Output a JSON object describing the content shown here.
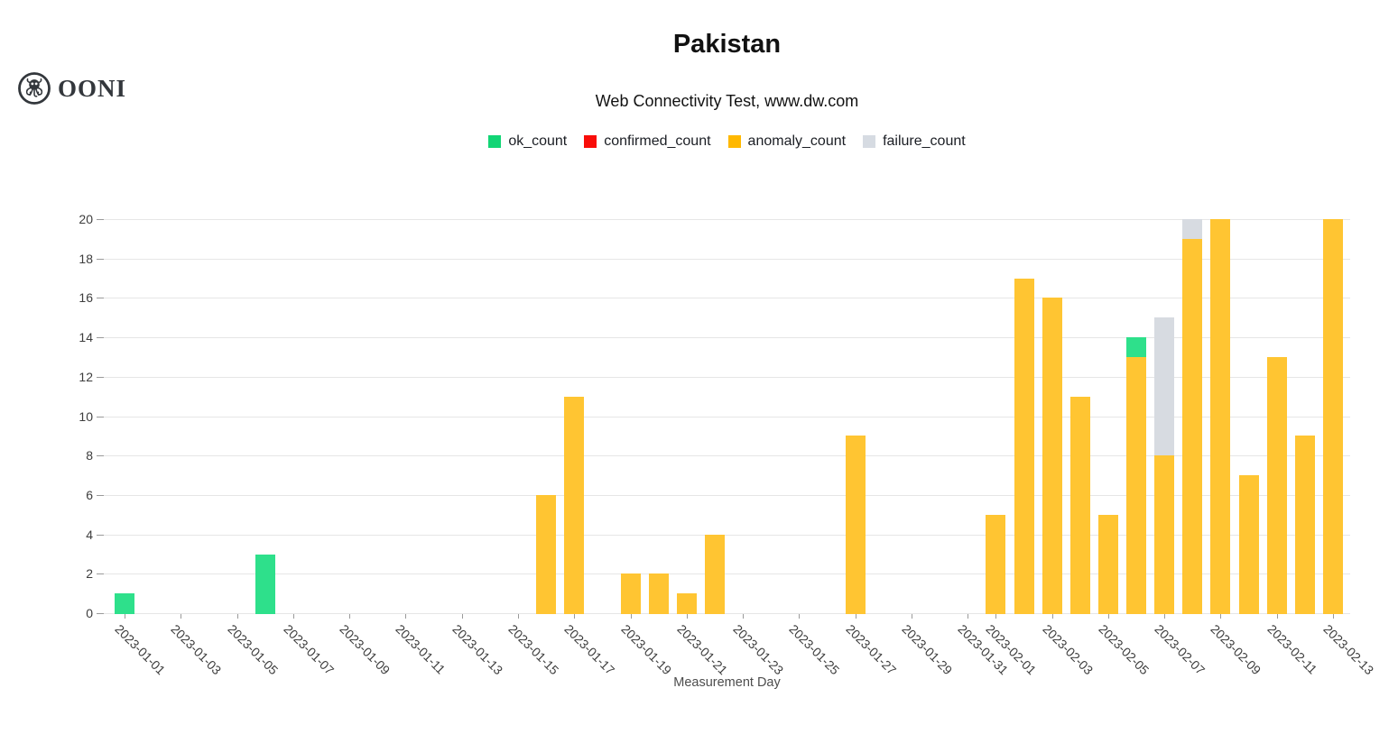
{
  "logo": {
    "text": "OONI"
  },
  "header": {
    "title": "Pakistan",
    "subtitle": "Web Connectivity Test, www.dw.com"
  },
  "legend": {
    "items": [
      {
        "label": "ok_count",
        "color": "#12d575"
      },
      {
        "label": "confirmed_count",
        "color": "#f90d09"
      },
      {
        "label": "anomaly_count",
        "color": "#ffb800"
      },
      {
        "label": "failure_count",
        "color": "#d6dbe2"
      }
    ]
  },
  "chart_data": {
    "type": "bar",
    "stacked": true,
    "title": "Pakistan",
    "subtitle": "Web Connectivity Test, www.dw.com",
    "xlabel": "Measurement Day",
    "ylabel": "",
    "ylim": [
      0,
      20
    ],
    "ytick_step": 2,
    "grid": true,
    "legend_position": "top",
    "x_start": "2023-01-01",
    "x_end": "2023-02-13",
    "xticks": [
      "2023-01-01",
      "2023-01-03",
      "2023-01-05",
      "2023-01-07",
      "2023-01-09",
      "2023-01-11",
      "2023-01-13",
      "2023-01-15",
      "2023-01-17",
      "2023-01-19",
      "2023-01-21",
      "2023-01-23",
      "2023-01-25",
      "2023-01-27",
      "2023-01-29",
      "2023-01-31",
      "2023-02-01",
      "2023-02-03",
      "2023-02-05",
      "2023-02-07",
      "2023-02-09",
      "2023-02-11",
      "2023-02-13"
    ],
    "stack_order": [
      "anomaly_count",
      "ok_count",
      "failure_count",
      "confirmed_count"
    ],
    "bar_colors": {
      "ok_count": "#2ee08b",
      "confirmed_count": "#f90d09",
      "anomaly_count": "#ffc532",
      "failure_count": "#d7dbe1"
    },
    "series": [
      {
        "name": "ok_count",
        "data": [
          {
            "date": "2023-01-01",
            "value": 1
          },
          {
            "date": "2023-01-06",
            "value": 3
          },
          {
            "date": "2023-02-06",
            "value": 1
          }
        ]
      },
      {
        "name": "confirmed_count",
        "data": []
      },
      {
        "name": "anomaly_count",
        "data": [
          {
            "date": "2023-01-16",
            "value": 6
          },
          {
            "date": "2023-01-17",
            "value": 11
          },
          {
            "date": "2023-01-19",
            "value": 2
          },
          {
            "date": "2023-01-20",
            "value": 2
          },
          {
            "date": "2023-01-21",
            "value": 1
          },
          {
            "date": "2023-01-22",
            "value": 4
          },
          {
            "date": "2023-01-27",
            "value": 9
          },
          {
            "date": "2023-02-01",
            "value": 5
          },
          {
            "date": "2023-02-02",
            "value": 17
          },
          {
            "date": "2023-02-03",
            "value": 16
          },
          {
            "date": "2023-02-04",
            "value": 11
          },
          {
            "date": "2023-02-05",
            "value": 5
          },
          {
            "date": "2023-02-06",
            "value": 13
          },
          {
            "date": "2023-02-07",
            "value": 8
          },
          {
            "date": "2023-02-08",
            "value": 19
          },
          {
            "date": "2023-02-09",
            "value": 20
          },
          {
            "date": "2023-02-10",
            "value": 7
          },
          {
            "date": "2023-02-11",
            "value": 13
          },
          {
            "date": "2023-02-12",
            "value": 9
          },
          {
            "date": "2023-02-13",
            "value": 20
          }
        ]
      },
      {
        "name": "failure_count",
        "data": [
          {
            "date": "2023-02-07",
            "value": 7
          },
          {
            "date": "2023-02-08",
            "value": 1
          }
        ]
      }
    ]
  }
}
